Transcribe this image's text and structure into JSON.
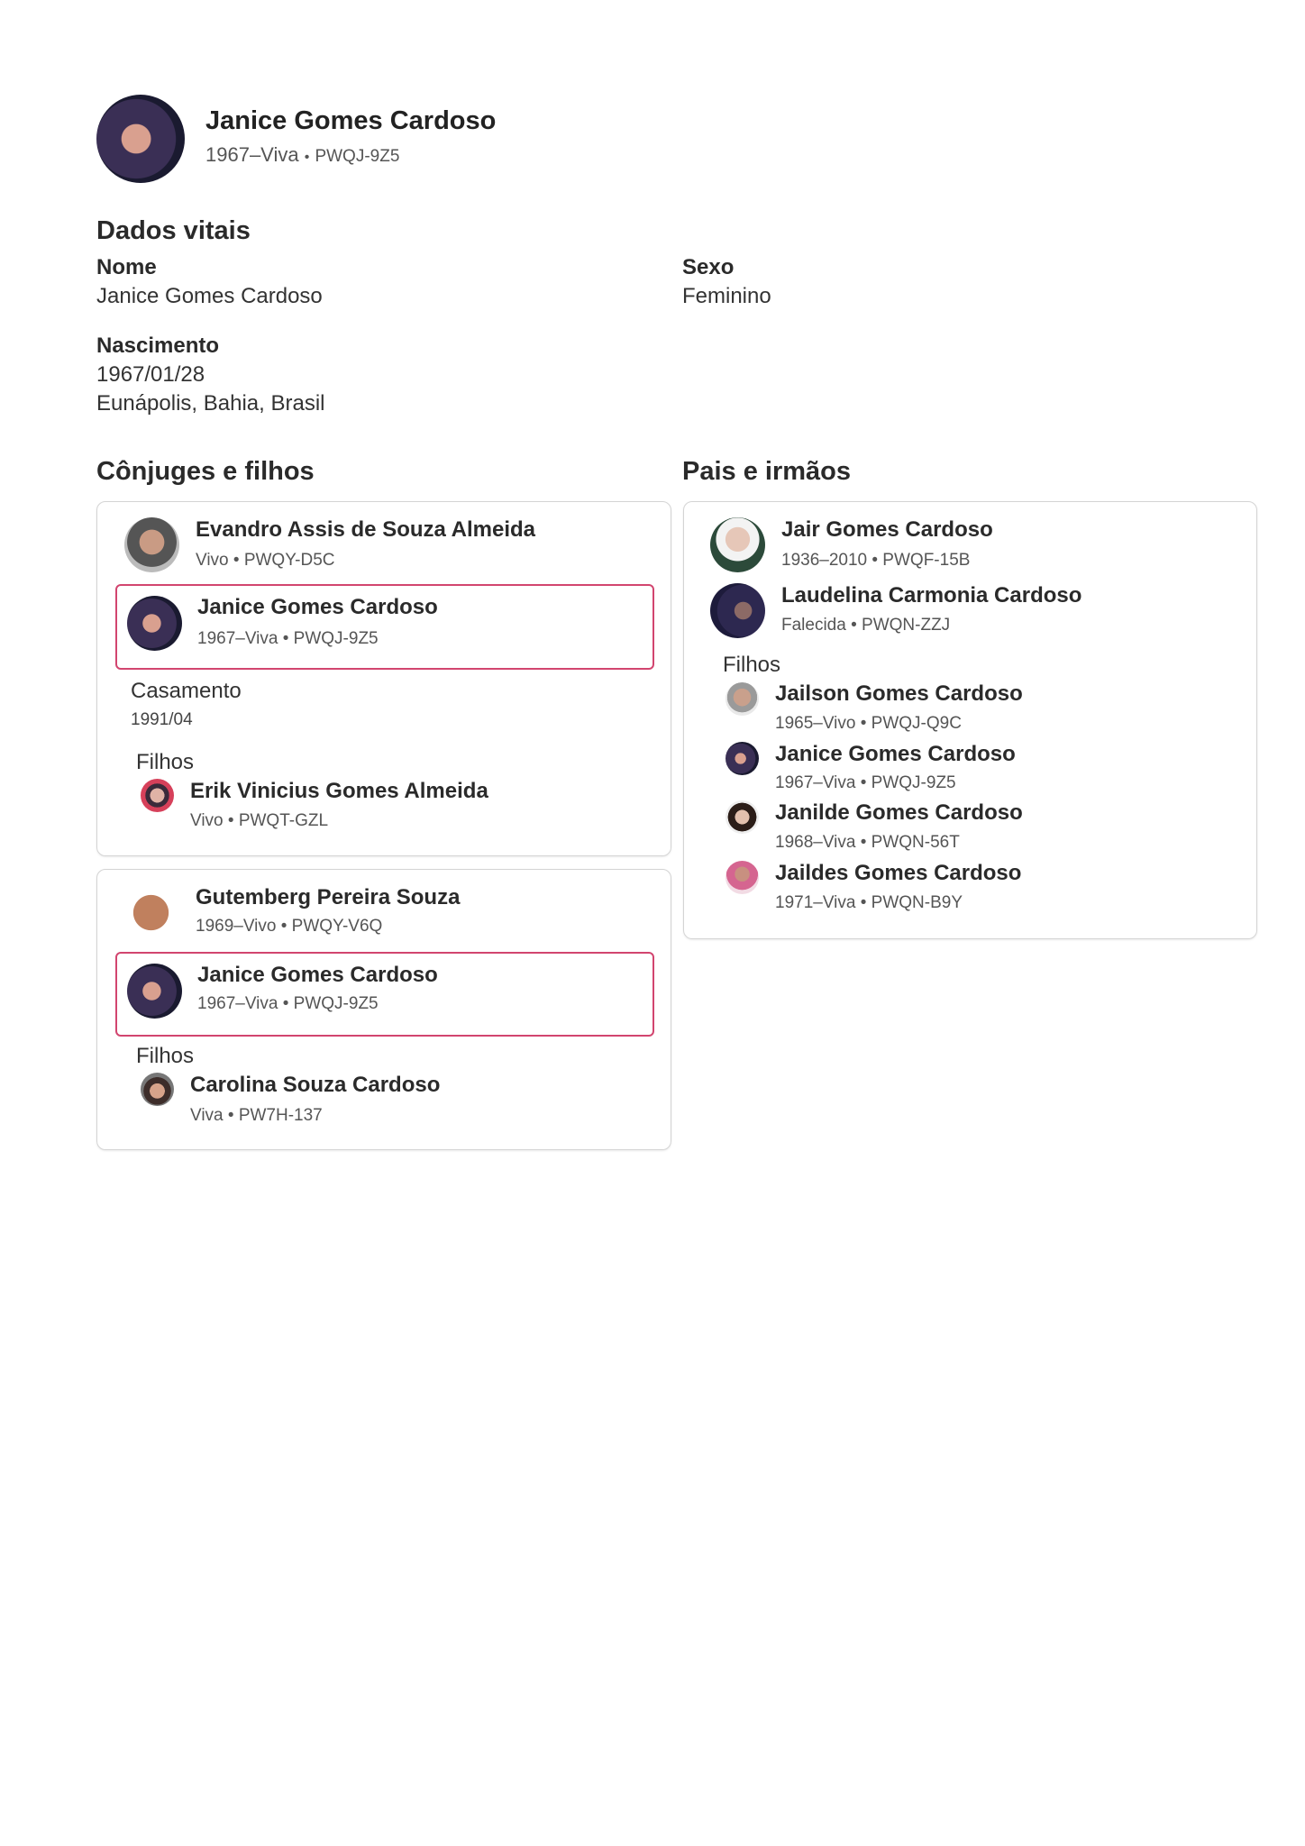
{
  "header": {
    "name": "Janice Gomes Cardoso",
    "lifespan": "1967–Viva",
    "separator": "•",
    "id": "PWQJ-9Z5",
    "avatar": "portrait-photo"
  },
  "vitals": {
    "title": "Dados vitais",
    "name_label": "Nome",
    "name_value": "Janice Gomes Cardoso",
    "sex_label": "Sexo",
    "sex_value": "Feminino",
    "birth_label": "Nascimento",
    "birth_date": "1967/01/28",
    "birth_place": "Eunápolis, Bahia, Brasil"
  },
  "spouses_section": {
    "title": "Cônjuges e filhos",
    "families": [
      {
        "spouse": {
          "name": "Evandro Assis de Souza Almeida",
          "info": "Vivo • PWQY-D5C"
        },
        "self": {
          "name": "Janice Gomes Cardoso",
          "info": "1967–Viva • PWQJ-9Z5"
        },
        "marriage_label": "Casamento",
        "marriage_date": "1991/04",
        "children_label": "Filhos",
        "children": [
          {
            "name": "Erik Vinicius Gomes Almeida",
            "info": "Vivo • PWQT-GZL"
          }
        ]
      },
      {
        "spouse": {
          "name": "Gutemberg Pereira Souza",
          "info": "1969–Vivo • PWQY-V6Q"
        },
        "self": {
          "name": "Janice Gomes Cardoso",
          "info": "1967–Viva • PWQJ-9Z5"
        },
        "children_label": "Filhos",
        "children": [
          {
            "name": "Carolina Souza Cardoso",
            "info": "Viva • PW7H-137"
          }
        ]
      }
    ]
  },
  "parents_section": {
    "title": "Pais e irmãos",
    "parents": [
      {
        "name": "Jair Gomes Cardoso",
        "info": "1936–2010 • PWQF-15B"
      },
      {
        "name": "Laudelina Carmonia Cardoso",
        "info": "Falecida • PWQN-ZZJ"
      }
    ],
    "children_label": "Filhos",
    "children": [
      {
        "name": "Jailson Gomes Cardoso",
        "info": "1965–Vivo • PWQJ-Q9C"
      },
      {
        "name": "Janice Gomes Cardoso",
        "info": "1967–Viva • PWQJ-9Z5"
      },
      {
        "name": "Janilde Gomes Cardoso",
        "info": "1968–Viva • PWQN-56T"
      },
      {
        "name": "Jaildes Gomes Cardoso",
        "info": "1971–Viva • PWQN-B9Y"
      }
    ]
  },
  "colors": {
    "highlight_border": "#d2456f",
    "card_border": "#d4d4d4"
  }
}
